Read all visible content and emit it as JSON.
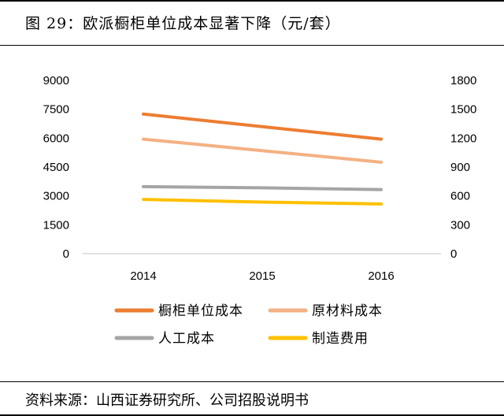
{
  "title": "图 29：欧派橱柜单位成本显著下降（元/套）",
  "source": "资料来源：山西证券研究所、公司招股说明书",
  "chart_data": {
    "type": "line",
    "x": [
      "2014",
      "2015",
      "2016"
    ],
    "left_axis": {
      "ticks": [
        "9000",
        "7500",
        "6000",
        "4500",
        "3000",
        "1500",
        "0"
      ],
      "ylim": [
        0,
        9000
      ]
    },
    "right_axis": {
      "ticks": [
        "1800",
        "1500",
        "1200",
        "900",
        "600",
        "300",
        "0"
      ],
      "ylim": [
        0,
        1800
      ]
    },
    "grid": false,
    "legend_position": "bottom",
    "series": [
      {
        "name": "橱柜单位成本",
        "axis": "left",
        "color": "#ED7D31",
        "values": [
          7250,
          6600,
          5950
        ]
      },
      {
        "name": "原材料成本",
        "axis": "left",
        "color": "#F4B183",
        "values": [
          5950,
          5350,
          4750
        ]
      },
      {
        "name": "人工成本",
        "axis": "left",
        "color": "#A5A5A5",
        "values": [
          3480,
          3420,
          3330
        ]
      },
      {
        "name": "制造费用",
        "axis": "left",
        "color": "#FFC000",
        "values": [
          2820,
          2680,
          2580
        ]
      }
    ]
  }
}
